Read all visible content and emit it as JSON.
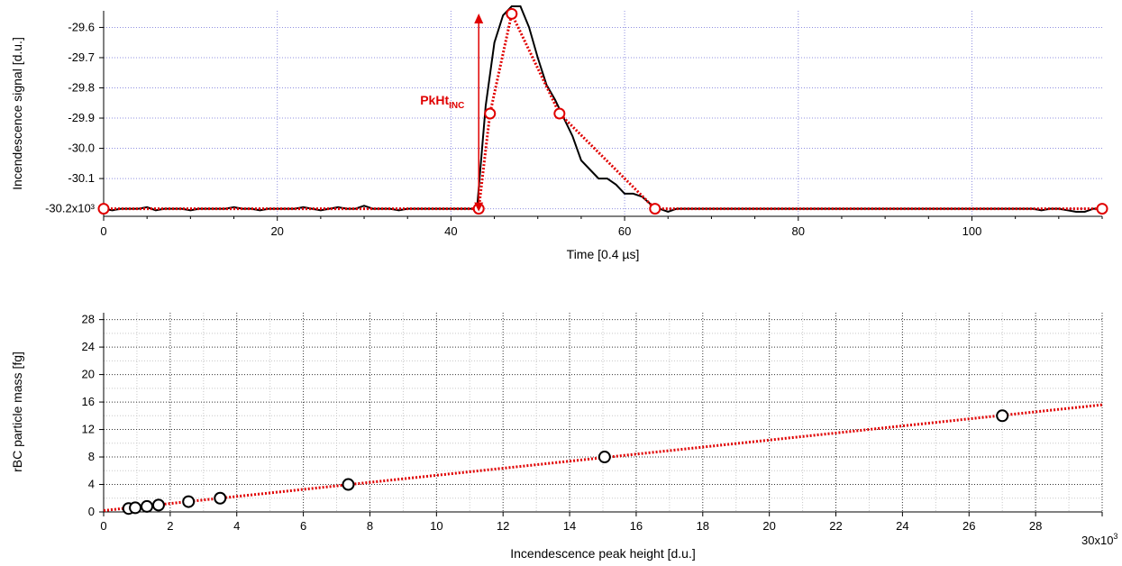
{
  "chart_data": [
    {
      "type": "line",
      "xlabel": "Time [0.4 µs]",
      "ylabel": "Incendescence signal [d.u.]",
      "xlim": [
        0,
        115
      ],
      "ylim": [
        -30.22,
        -29.55
      ],
      "x_ticks": [
        0,
        20,
        40,
        60,
        80,
        100
      ],
      "y_ticks": [
        {
          "value": -29.6,
          "label": "-29.6"
        },
        {
          "value": -29.7,
          "label": "-29.7"
        },
        {
          "value": -29.8,
          "label": "-29.8"
        },
        {
          "value": -29.9,
          "label": "-29.9"
        },
        {
          "value": -30.0,
          "label": "-30.0"
        },
        {
          "value": -30.1,
          "label": "-30.1"
        },
        {
          "value": -30.2,
          "label": "-30.2x10³"
        }
      ],
      "grid": true,
      "annotation": {
        "text": "PkHt",
        "subscript": "INC",
        "x": 43.2,
        "y_from": -30.2,
        "y_to": -29.56
      },
      "series": [
        {
          "color": "#000000",
          "style": "solid",
          "x": [
            0,
            1,
            2,
            3,
            4,
            5,
            6,
            7,
            8,
            9,
            10,
            11,
            12,
            13,
            14,
            15,
            16,
            17,
            18,
            19,
            20,
            21,
            22,
            23,
            24,
            25,
            26,
            27,
            28,
            29,
            30,
            31,
            32,
            33,
            34,
            35,
            36,
            37,
            38,
            39,
            40,
            41,
            42,
            43,
            44,
            45,
            46,
            47,
            48,
            49,
            50,
            51,
            52,
            53,
            54,
            55,
            56,
            57,
            58,
            59,
            60,
            61,
            62,
            63,
            64,
            65,
            66,
            67,
            68,
            69,
            70,
            71,
            72,
            73,
            74,
            75,
            76,
            77,
            78,
            79,
            80,
            81,
            82,
            83,
            84,
            85,
            86,
            87,
            88,
            89,
            90,
            91,
            92,
            93,
            94,
            95,
            96,
            97,
            98,
            99,
            100,
            101,
            102,
            103,
            104,
            105,
            106,
            107,
            108,
            109,
            110,
            111,
            112,
            113,
            114,
            115
          ],
          "y": [
            -30.2,
            -30.205,
            -30.2,
            -30.2,
            -30.2,
            -30.195,
            -30.205,
            -30.2,
            -30.2,
            -30.2,
            -30.205,
            -30.2,
            -30.2,
            -30.2,
            -30.2,
            -30.195,
            -30.2,
            -30.2,
            -30.205,
            -30.2,
            -30.2,
            -30.2,
            -30.2,
            -30.195,
            -30.2,
            -30.205,
            -30.2,
            -30.195,
            -30.2,
            -30.2,
            -30.19,
            -30.2,
            -30.2,
            -30.2,
            -30.205,
            -30.2,
            -30.2,
            -30.2,
            -30.2,
            -30.2,
            -30.2,
            -30.2,
            -30.2,
            -30.2,
            -29.86,
            -29.65,
            -29.56,
            -29.53,
            -29.53,
            -29.6,
            -29.7,
            -29.79,
            -29.84,
            -29.9,
            -29.96,
            -30.04,
            -30.07,
            -30.1,
            -30.1,
            -30.12,
            -30.15,
            -30.15,
            -30.16,
            -30.185,
            -30.2,
            -30.21,
            -30.2,
            -30.2,
            -30.2,
            -30.2,
            -30.2,
            -30.2,
            -30.2,
            -30.2,
            -30.2,
            -30.2,
            -30.2,
            -30.2,
            -30.2,
            -30.2,
            -30.2,
            -30.2,
            -30.2,
            -30.2,
            -30.2,
            -30.2,
            -30.2,
            -30.2,
            -30.2,
            -30.2,
            -30.2,
            -30.2,
            -30.2,
            -30.2,
            -30.2,
            -30.2,
            -30.2,
            -30.2,
            -30.2,
            -30.2,
            -30.2,
            -30.2,
            -30.2,
            -30.2,
            -30.2,
            -30.2,
            -30.2,
            -30.2,
            -30.205,
            -30.2,
            -30.2,
            -30.205,
            -30.21,
            -30.21,
            -30.2,
            -30.2
          ]
        },
        {
          "color": "#e00000",
          "style": "dotted-with-markers",
          "x": [
            0,
            43.2,
            44.5,
            47,
            52.5,
            63.5,
            115
          ],
          "y": [
            -30.2,
            -30.2,
            -29.885,
            -29.555,
            -29.885,
            -30.2,
            -30.2
          ]
        }
      ]
    },
    {
      "type": "scatter",
      "xlabel": "Incendescence peak height [d.u.]",
      "ylabel": "rBC particle mass [fg]",
      "xlim": [
        0,
        30
      ],
      "ylim": [
        0,
        29
      ],
      "x_ticks": [
        {
          "value": 0,
          "label": "0"
        },
        {
          "value": 2,
          "label": "2"
        },
        {
          "value": 4,
          "label": "4"
        },
        {
          "value": 6,
          "label": "6"
        },
        {
          "value": 8,
          "label": "8"
        },
        {
          "value": 10,
          "label": "10"
        },
        {
          "value": 12,
          "label": "12"
        },
        {
          "value": 14,
          "label": "14"
        },
        {
          "value": 16,
          "label": "16"
        },
        {
          "value": 18,
          "label": "18"
        },
        {
          "value": 20,
          "label": "20"
        },
        {
          "value": 22,
          "label": "22"
        },
        {
          "value": 24,
          "label": "24"
        },
        {
          "value": 26,
          "label": "26"
        },
        {
          "value": 28,
          "label": "28"
        }
      ],
      "x_multiplier_label": "30x10³",
      "y_ticks": [
        0,
        4,
        8,
        12,
        16,
        20,
        24,
        28
      ],
      "grid": true,
      "points": {
        "x": [
          0.75,
          0.95,
          1.3,
          1.65,
          2.55,
          3.5,
          7.35,
          15.05,
          27.0
        ],
        "y": [
          0.5,
          0.6,
          0.8,
          1.0,
          1.5,
          2.0,
          4.0,
          8.0,
          14.0
        ]
      },
      "fit": {
        "color": "#e00000",
        "style": "dotted",
        "x": [
          0,
          30
        ],
        "y": [
          0.2,
          15.6
        ]
      }
    }
  ]
}
